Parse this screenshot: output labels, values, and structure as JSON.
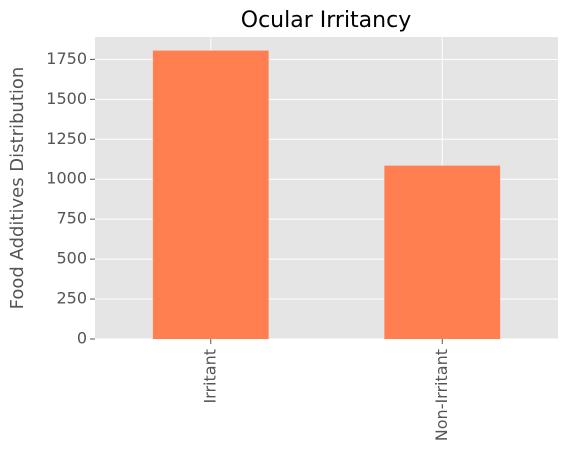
{
  "chart_data": {
    "type": "bar",
    "title": "Ocular Irritancy",
    "y_label": "Food Additives Distribution",
    "categories": [
      "Irritant",
      "Non-Irritant"
    ],
    "values": [
      1805,
      1085
    ],
    "color": "#ff7f50",
    "ylim": [
      0,
      1890
    ],
    "yticks": [
      0,
      250,
      500,
      750,
      1000,
      1250,
      1500,
      1750
    ],
    "grid": true
  }
}
